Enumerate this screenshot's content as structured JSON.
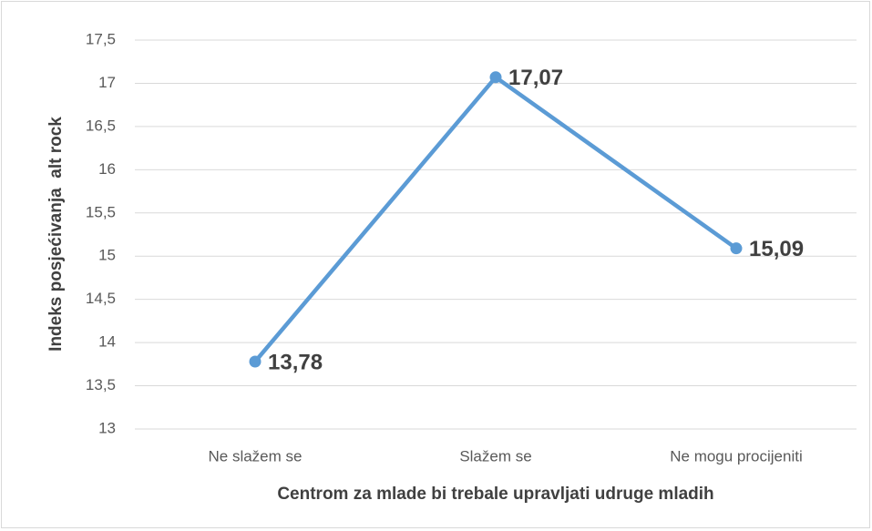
{
  "chart_data": {
    "type": "line",
    "categories": [
      "Ne slažem se",
      "Slažem se",
      "Ne mogu procijeniti"
    ],
    "values": [
      13.78,
      17.07,
      15.09
    ],
    "value_labels": [
      "13,78",
      "17,07",
      "15,09"
    ],
    "color": "#5b9bd5",
    "ylim": [
      13,
      17.5
    ],
    "yticks": [
      13,
      {
        "value": 13.5,
        "label": "13,5"
      },
      14,
      {
        "value": 14.5,
        "label": "14,5"
      },
      15,
      {
        "value": 15.5,
        "label": "15,5"
      },
      16,
      {
        "value": 16.5,
        "label": "16,5"
      },
      17,
      {
        "value": 17.5,
        "label": "17,5"
      }
    ],
    "grid": true,
    "x_label": "Centrom za mlade bi trebale upravljati udruge mladih",
    "y_label": "Indeks posjećivanja  alt rock"
  }
}
